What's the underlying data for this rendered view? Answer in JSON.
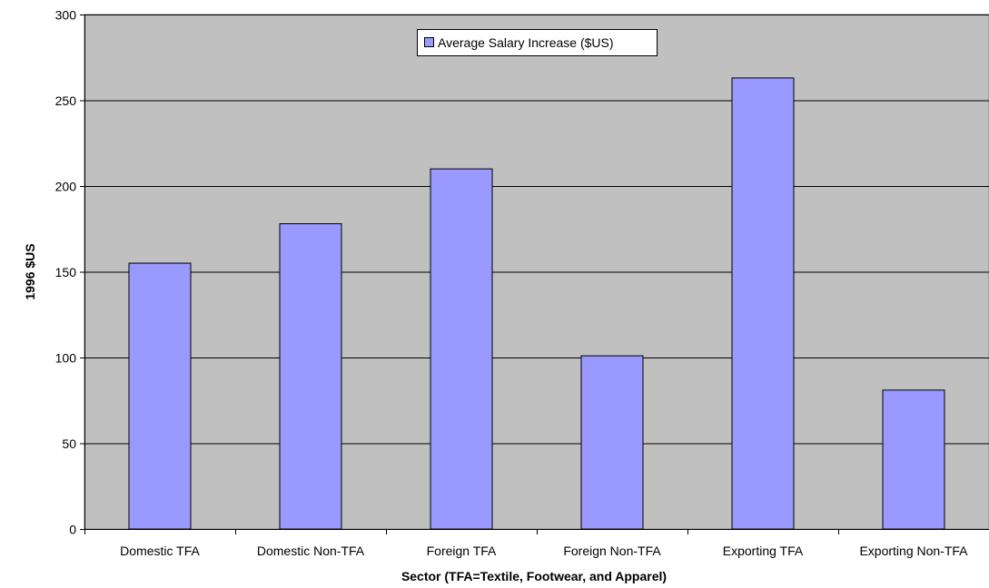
{
  "chart_data": {
    "type": "bar",
    "categories": [
      "Domestic TFA",
      "Domestic Non-TFA",
      "Foreign TFA",
      "Foreign Non-TFA",
      "Exporting TFA",
      "Exporting Non-TFA"
    ],
    "series": [
      {
        "name": "Average Salary Increase ($US)",
        "values": [
          155,
          178,
          210,
          101,
          263,
          81
        ]
      }
    ],
    "title": "",
    "xlabel": "Sector (TFA=Textile, Footwear, and Apparel)",
    "ylabel": "1996 $US",
    "ylim": [
      0,
      300
    ],
    "yticks": [
      0,
      50,
      100,
      150,
      200,
      250,
      300
    ],
    "grid": true,
    "legend_position": "top-center",
    "colors": {
      "plot_background": "#c0c0c0",
      "bar_fill": "#9999ff",
      "bar_stroke": "#000000",
      "gridline": "#000000"
    }
  }
}
